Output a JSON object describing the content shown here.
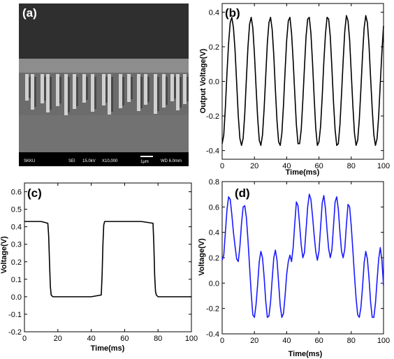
{
  "panels": {
    "a": {
      "letter": "(a)"
    },
    "b": {
      "letter": "(b)"
    },
    "c": {
      "letter": "(c)"
    },
    "d": {
      "letter": "(d)"
    }
  },
  "sem_image": {
    "info_bar": [
      "SKKU",
      "SEI",
      "15.0kV",
      "X10,000",
      "1μm",
      "WD 6.0mm"
    ],
    "colors": {
      "vacuum": "#303030",
      "surface": "#8a8a8a",
      "substrate": "#6f6f6f",
      "rods": "#e2e2e2",
      "bar": "#000000"
    }
  },
  "chart_data": [
    {
      "panel": "b",
      "type": "line",
      "xlabel": "Time(ms)",
      "ylabel": "Output Voltage(V)",
      "xlim": [
        0,
        100
      ],
      "ylim": [
        -0.45,
        0.45
      ],
      "xticks": [
        0,
        20,
        40,
        60,
        80,
        100
      ],
      "yticks": [
        -0.4,
        -0.2,
        0.0,
        0.2,
        0.4
      ],
      "ytick_labels": [
        "-0.4",
        "-0.2",
        "0.0",
        "0.2",
        "0.4"
      ],
      "color": "#000000",
      "series": [
        {
          "x": [
            0,
            1,
            2,
            3,
            4,
            5,
            6,
            7,
            8,
            9,
            10,
            11,
            12,
            13,
            14,
            15,
            16,
            17,
            18,
            19,
            20,
            21,
            22,
            23,
            24,
            25,
            26,
            27,
            28,
            29,
            30,
            31,
            32,
            33,
            34,
            35,
            36,
            37,
            38,
            39,
            40,
            41,
            42,
            43,
            44,
            45,
            46,
            47,
            48,
            49,
            50,
            51,
            52,
            53,
            54,
            55,
            56,
            57,
            58,
            59,
            60,
            61,
            62,
            63,
            64,
            65,
            66,
            67,
            68,
            69,
            70,
            71,
            72,
            73,
            74,
            75,
            76,
            77,
            78,
            79,
            80,
            81,
            82,
            83,
            84,
            85,
            86,
            87,
            88,
            89,
            90,
            91,
            92,
            93,
            94,
            95,
            96,
            97,
            98,
            99,
            100
          ],
          "y": [
            -0.36,
            -0.31,
            -0.15,
            0.05,
            0.22,
            0.34,
            0.37,
            0.31,
            0.18,
            -0.01,
            -0.2,
            -0.33,
            -0.37,
            -0.33,
            -0.19,
            0.01,
            0.2,
            0.33,
            0.37,
            0.31,
            0.16,
            -0.03,
            -0.21,
            -0.34,
            -0.37,
            -0.31,
            -0.16,
            0.03,
            0.22,
            0.34,
            0.37,
            0.3,
            0.15,
            -0.05,
            -0.23,
            -0.35,
            -0.37,
            -0.3,
            -0.14,
            0.06,
            0.24,
            0.35,
            0.37,
            0.28,
            0.12,
            -0.07,
            -0.25,
            -0.36,
            -0.36,
            -0.28,
            -0.11,
            0.08,
            0.26,
            0.36,
            0.37,
            0.28,
            0.11,
            -0.09,
            -0.27,
            -0.37,
            -0.35,
            -0.26,
            -0.09,
            0.11,
            0.27,
            0.37,
            0.36,
            0.26,
            0.08,
            -0.12,
            -0.28,
            -0.37,
            -0.36,
            -0.25,
            -0.07,
            0.12,
            0.29,
            0.38,
            0.35,
            0.24,
            0.05,
            -0.14,
            -0.3,
            -0.37,
            -0.34,
            -0.22,
            -0.04,
            0.15,
            0.31,
            0.38,
            0.34,
            0.21,
            0.02,
            -0.16,
            -0.31,
            -0.37,
            -0.33,
            -0.2,
            -0.01,
            0.17,
            0.32
          ]
        }
      ]
    },
    {
      "panel": "c",
      "type": "line",
      "xlabel": "Time(ms)",
      "ylabel": "Voltage(V)",
      "xlim": [
        0,
        100
      ],
      "ylim": [
        -0.2,
        0.65
      ],
      "xticks": [
        0,
        20,
        40,
        60,
        80,
        100
      ],
      "yticks": [
        -0.2,
        -0.1,
        0.0,
        0.1,
        0.2,
        0.3,
        0.4,
        0.5,
        0.6
      ],
      "ytick_labels": [
        "-0.2",
        "-0.1",
        "0.0",
        "0.1",
        "0.2",
        "0.3",
        "0.4",
        "0.5",
        "0.6"
      ],
      "color": "#000000",
      "series": [
        {
          "x": [
            0,
            10,
            14,
            14.5,
            15,
            15.5,
            16,
            17,
            20,
            30,
            40,
            46,
            46.5,
            47,
            47.5,
            48,
            50,
            60,
            70,
            77,
            77.5,
            78,
            78.5,
            79,
            80,
            90,
            100
          ],
          "y": [
            0.43,
            0.43,
            0.42,
            0.35,
            0.2,
            0.06,
            0.01,
            0.0,
            0.0,
            0.0,
            0.0,
            0.01,
            0.12,
            0.3,
            0.41,
            0.43,
            0.43,
            0.43,
            0.43,
            0.42,
            0.3,
            0.12,
            0.03,
            0.01,
            0.0,
            0.0,
            0.0
          ]
        }
      ]
    },
    {
      "panel": "d",
      "type": "line",
      "xlabel": "Time(ms)",
      "ylabel": "Voltage(V)",
      "xlim": [
        0,
        100
      ],
      "ylim": [
        -0.4,
        0.8
      ],
      "xticks": [
        0,
        20,
        40,
        60,
        80,
        100
      ],
      "yticks": [
        -0.4,
        -0.2,
        0.0,
        0.2,
        0.4,
        0.6,
        0.8
      ],
      "ytick_labels": [
        "-0.4",
        "-0.2",
        "0.0",
        "0.2",
        "0.4",
        "0.6",
        "0.8"
      ],
      "color": "#1a1aff",
      "series": [
        {
          "x": [
            0,
            1,
            2,
            3,
            4,
            5,
            6,
            7,
            8,
            9,
            10,
            11,
            12,
            13,
            14,
            15,
            16,
            17,
            18,
            19,
            20,
            21,
            22,
            23,
            24,
            25,
            26,
            27,
            28,
            29,
            30,
            31,
            32,
            33,
            34,
            35,
            36,
            37,
            38,
            39,
            40,
            41,
            42,
            43,
            44,
            45,
            46,
            47,
            48,
            49,
            50,
            51,
            52,
            53,
            54,
            55,
            56,
            57,
            58,
            59,
            60,
            61,
            62,
            63,
            64,
            65,
            66,
            67,
            68,
            69,
            70,
            71,
            72,
            73,
            74,
            75,
            76,
            77,
            78,
            79,
            80,
            81,
            82,
            83,
            84,
            85,
            86,
            87,
            88,
            89,
            90,
            91,
            92,
            93,
            94,
            95,
            96,
            97,
            98,
            99,
            100
          ],
          "y": [
            0.18,
            0.22,
            0.4,
            0.58,
            0.68,
            0.66,
            0.54,
            0.4,
            0.29,
            0.19,
            0.17,
            0.29,
            0.47,
            0.6,
            0.61,
            0.52,
            0.34,
            0.13,
            -0.08,
            -0.25,
            -0.27,
            -0.17,
            -0.01,
            0.17,
            0.25,
            0.2,
            0.05,
            -0.14,
            -0.27,
            -0.26,
            -0.15,
            0.03,
            0.2,
            0.26,
            0.18,
            0.0,
            -0.18,
            -0.27,
            -0.24,
            -0.1,
            0.07,
            0.17,
            0.22,
            0.17,
            0.28,
            0.47,
            0.64,
            0.61,
            0.46,
            0.3,
            0.2,
            0.24,
            0.42,
            0.6,
            0.7,
            0.66,
            0.53,
            0.38,
            0.25,
            0.18,
            0.25,
            0.44,
            0.63,
            0.69,
            0.59,
            0.42,
            0.27,
            0.2,
            0.26,
            0.45,
            0.64,
            0.68,
            0.58,
            0.4,
            0.25,
            0.2,
            0.27,
            0.46,
            0.62,
            0.6,
            0.45,
            0.26,
            0.06,
            -0.12,
            -0.25,
            -0.27,
            -0.19,
            -0.03,
            0.16,
            0.25,
            0.19,
            0.04,
            -0.15,
            -0.27,
            -0.27,
            -0.16,
            0.02,
            0.19,
            0.28,
            0.18,
            -0.02
          ]
        }
      ]
    }
  ]
}
